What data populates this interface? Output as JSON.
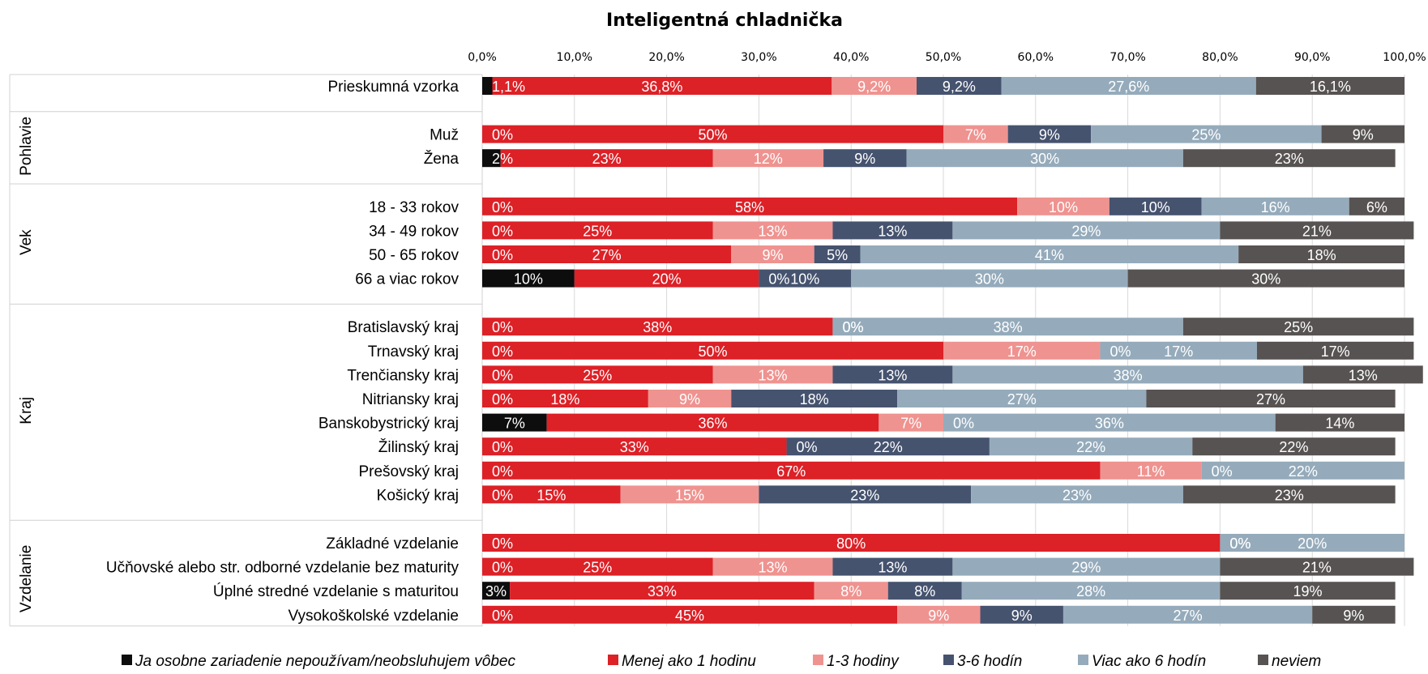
{
  "chart_data": {
    "type": "bar",
    "orientation": "horizontal-stacked",
    "title": "Inteligentná chladnička",
    "xlim": [
      0,
      100
    ],
    "x_ticks": [
      "0,0%",
      "10,0%",
      "20,0%",
      "30,0%",
      "40,0%",
      "50,0%",
      "60,0%",
      "70,0%",
      "80,0%",
      "90,0%",
      "100,0%"
    ],
    "grid": true,
    "legend_position": "bottom",
    "series": [
      {
        "name": "Ja osobne zariadenie nepoužívam/neobsluhujem vôbec",
        "color": "#0d0d0d"
      },
      {
        "name": "Menej ako 1 hodinu",
        "color": "#dc2127"
      },
      {
        "name": "1-3 hodiny",
        "color": "#ef9390"
      },
      {
        "name": "3-6 hodín",
        "color": "#46536f"
      },
      {
        "name": "Viac ako 6 hodín",
        "color": "#95abbb"
      },
      {
        "name": "neviem",
        "color": "#575352"
      }
    ],
    "groups": [
      {
        "name": "",
        "rows": [
          {
            "label": "Prieskumná vzorka",
            "values": [
              1.1,
              36.8,
              9.2,
              9.2,
              27.6,
              16.1
            ],
            "labels": [
              "1,1%",
              "36,8%",
              "9,2%",
              "9,2%",
              "27,6%",
              "16,1%"
            ]
          }
        ]
      },
      {
        "name": "Pohlavie",
        "rows": [
          {
            "label": "Muž",
            "values": [
              0,
              50,
              7,
              9,
              25,
              9
            ],
            "labels": [
              "0%",
              "50%",
              "7%",
              "9%",
              "25%",
              "9%"
            ]
          },
          {
            "label": "Žena",
            "values": [
              2,
              23,
              12,
              9,
              30,
              23
            ],
            "labels": [
              "2%",
              "23%",
              "12%",
              "9%",
              "30%",
              "23%"
            ]
          }
        ]
      },
      {
        "name": "Vek",
        "rows": [
          {
            "label": "18 - 33 rokov",
            "values": [
              0,
              58,
              10,
              10,
              16,
              6
            ],
            "labels": [
              "0%",
              "58%",
              "10%",
              "10%",
              "16%",
              "6%"
            ]
          },
          {
            "label": "34 - 49 rokov",
            "values": [
              0,
              25,
              13,
              13,
              29,
              21
            ],
            "labels": [
              "0%",
              "25%",
              "13%",
              "13%",
              "29%",
              "21%"
            ]
          },
          {
            "label": "50 - 65 rokov",
            "values": [
              0,
              27,
              9,
              5,
              41,
              18
            ],
            "labels": [
              "0%",
              "27%",
              "9%",
              "5%",
              "41%",
              "18%"
            ]
          },
          {
            "label": "66 a viac rokov",
            "values": [
              10,
              20,
              0,
              10,
              30,
              30
            ],
            "labels": [
              "10%",
              "20%",
              "0%",
              "10%",
              "30%",
              "30%"
            ]
          }
        ]
      },
      {
        "name": "Kraj",
        "rows": [
          {
            "label": "Bratislavský kraj",
            "values": [
              0,
              38,
              0,
              0,
              38,
              25
            ],
            "labels": [
              "0%",
              "38%",
              "0%",
              "0%",
              "38%",
              "25%"
            ]
          },
          {
            "label": "Trnavský kraj",
            "values": [
              0,
              50,
              17,
              0,
              17,
              17
            ],
            "labels": [
              "0%",
              "50%",
              "17%",
              "0%",
              "17%",
              "17%"
            ]
          },
          {
            "label": "Trenčiansky kraj",
            "values": [
              0,
              25,
              13,
              13,
              38,
              13
            ],
            "labels": [
              "0%",
              "25%",
              "13%",
              "13%",
              "38%",
              "13%"
            ]
          },
          {
            "label": "Nitriansky kraj",
            "values": [
              0,
              18,
              9,
              18,
              27,
              27
            ],
            "labels": [
              "0%",
              "18%",
              "9%",
              "18%",
              "27%",
              "27%"
            ]
          },
          {
            "label": "Banskobystrický kraj",
            "values": [
              7,
              36,
              7,
              0,
              36,
              14
            ],
            "labels": [
              "7%",
              "36%",
              "7%",
              "0%",
              "36%",
              "14%"
            ]
          },
          {
            "label": "Žilinský kraj",
            "values": [
              0,
              33,
              0,
              22,
              22,
              22
            ],
            "labels": [
              "0%",
              "33%",
              "0%",
              "22%",
              "22%",
              "22%"
            ]
          },
          {
            "label": "Prešovský kraj",
            "values": [
              0,
              67,
              11,
              0,
              22,
              0
            ],
            "labels": [
              "0%",
              "67%",
              "11%",
              "0%",
              "22%",
              "0%"
            ]
          },
          {
            "label": "Košický kraj",
            "values": [
              0,
              15,
              15,
              23,
              23,
              23
            ],
            "labels": [
              "0%",
              "15%",
              "15%",
              "23%",
              "23%",
              "23%"
            ]
          }
        ]
      },
      {
        "name": "Vzdelanie",
        "rows": [
          {
            "label": "Základné vzdelanie",
            "values": [
              0,
              80,
              0,
              0,
              20,
              0
            ],
            "labels": [
              "0%",
              "80%",
              "0%",
              "0%",
              "20%",
              "0%"
            ]
          },
          {
            "label": "Učňovské alebo str. odborné vzdelanie bez maturity",
            "values": [
              0,
              25,
              13,
              13,
              29,
              21
            ],
            "labels": [
              "0%",
              "25%",
              "13%",
              "13%",
              "29%",
              "21%"
            ]
          },
          {
            "label": "Úplné stredné vzdelanie s maturitou",
            "values": [
              3,
              33,
              8,
              8,
              28,
              19
            ],
            "labels": [
              "3%",
              "33%",
              "8%",
              "8%",
              "28%",
              "19%"
            ]
          },
          {
            "label": "Vysokoškolské vzdelanie",
            "values": [
              0,
              45,
              9,
              9,
              27,
              9
            ],
            "labels": [
              "0%",
              "45%",
              "9%",
              "9%",
              "27%",
              "9%"
            ]
          }
        ]
      }
    ]
  }
}
